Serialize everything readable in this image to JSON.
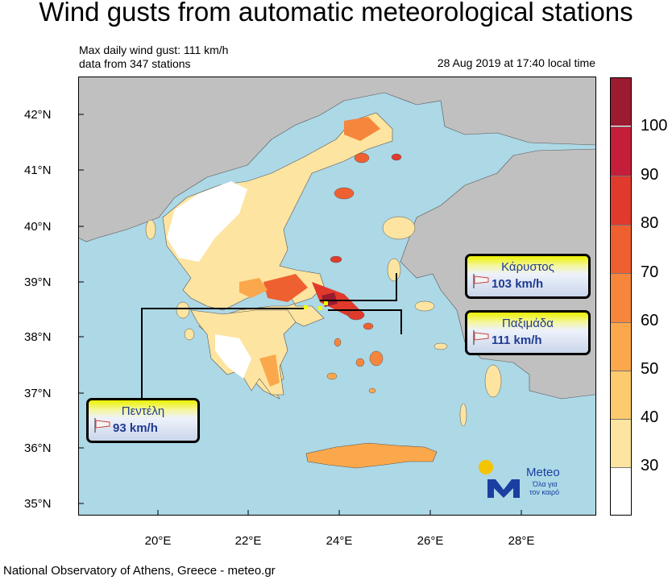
{
  "title": "Wind gusts from automatic meteorological stations",
  "info": {
    "line1": "Max daily wind gust: 111 km/h",
    "line2": "data from 347 stations",
    "timestamp": "28 Aug 2019 at 17:40 local time"
  },
  "axes": {
    "lat_labels": [
      "42°N",
      "41°N",
      "40°N",
      "39°N",
      "38°N",
      "37°N",
      "36°N",
      "35°N"
    ],
    "lon_labels": [
      "20°E",
      "22°E",
      "24°E",
      "26°E",
      "28°E"
    ]
  },
  "colorbar": {
    "labels": [
      "100",
      "90",
      "80",
      "70",
      "60",
      "50",
      "40",
      "30"
    ],
    "bins": [
      {
        "from": 100,
        "color": "#9b1b30"
      },
      {
        "from": 90,
        "color": "#c41e3a"
      },
      {
        "from": 80,
        "color": "#e03a2c"
      },
      {
        "from": 70,
        "color": "#ef6031"
      },
      {
        "from": 60,
        "color": "#f7863d"
      },
      {
        "from": 50,
        "color": "#fba84c"
      },
      {
        "from": 40,
        "color": "#fdca6d"
      },
      {
        "from": 30,
        "color": "#fde4a0"
      },
      {
        "from": 0,
        "color": "#ffffff"
      }
    ]
  },
  "stations": [
    {
      "name": "Κάρυστος",
      "value": "103 km/h"
    },
    {
      "name": "Παξιμάδα",
      "value": "111 km/h"
    },
    {
      "name": "Πεντέλη",
      "value": "93 km/h"
    }
  ],
  "logo": {
    "name": "Meteo",
    "tagline1": "Όλα για",
    "tagline2": "τον καιρό",
    "brand_color": "#1b3fa0",
    "sun_color": "#f5c400"
  },
  "colors": {
    "sea": "#add8e6",
    "land_other": "#c0c0c0",
    "greece_base": "#ffffff"
  },
  "credit": "National Observatory of Athens, Greece - meteo.gr"
}
